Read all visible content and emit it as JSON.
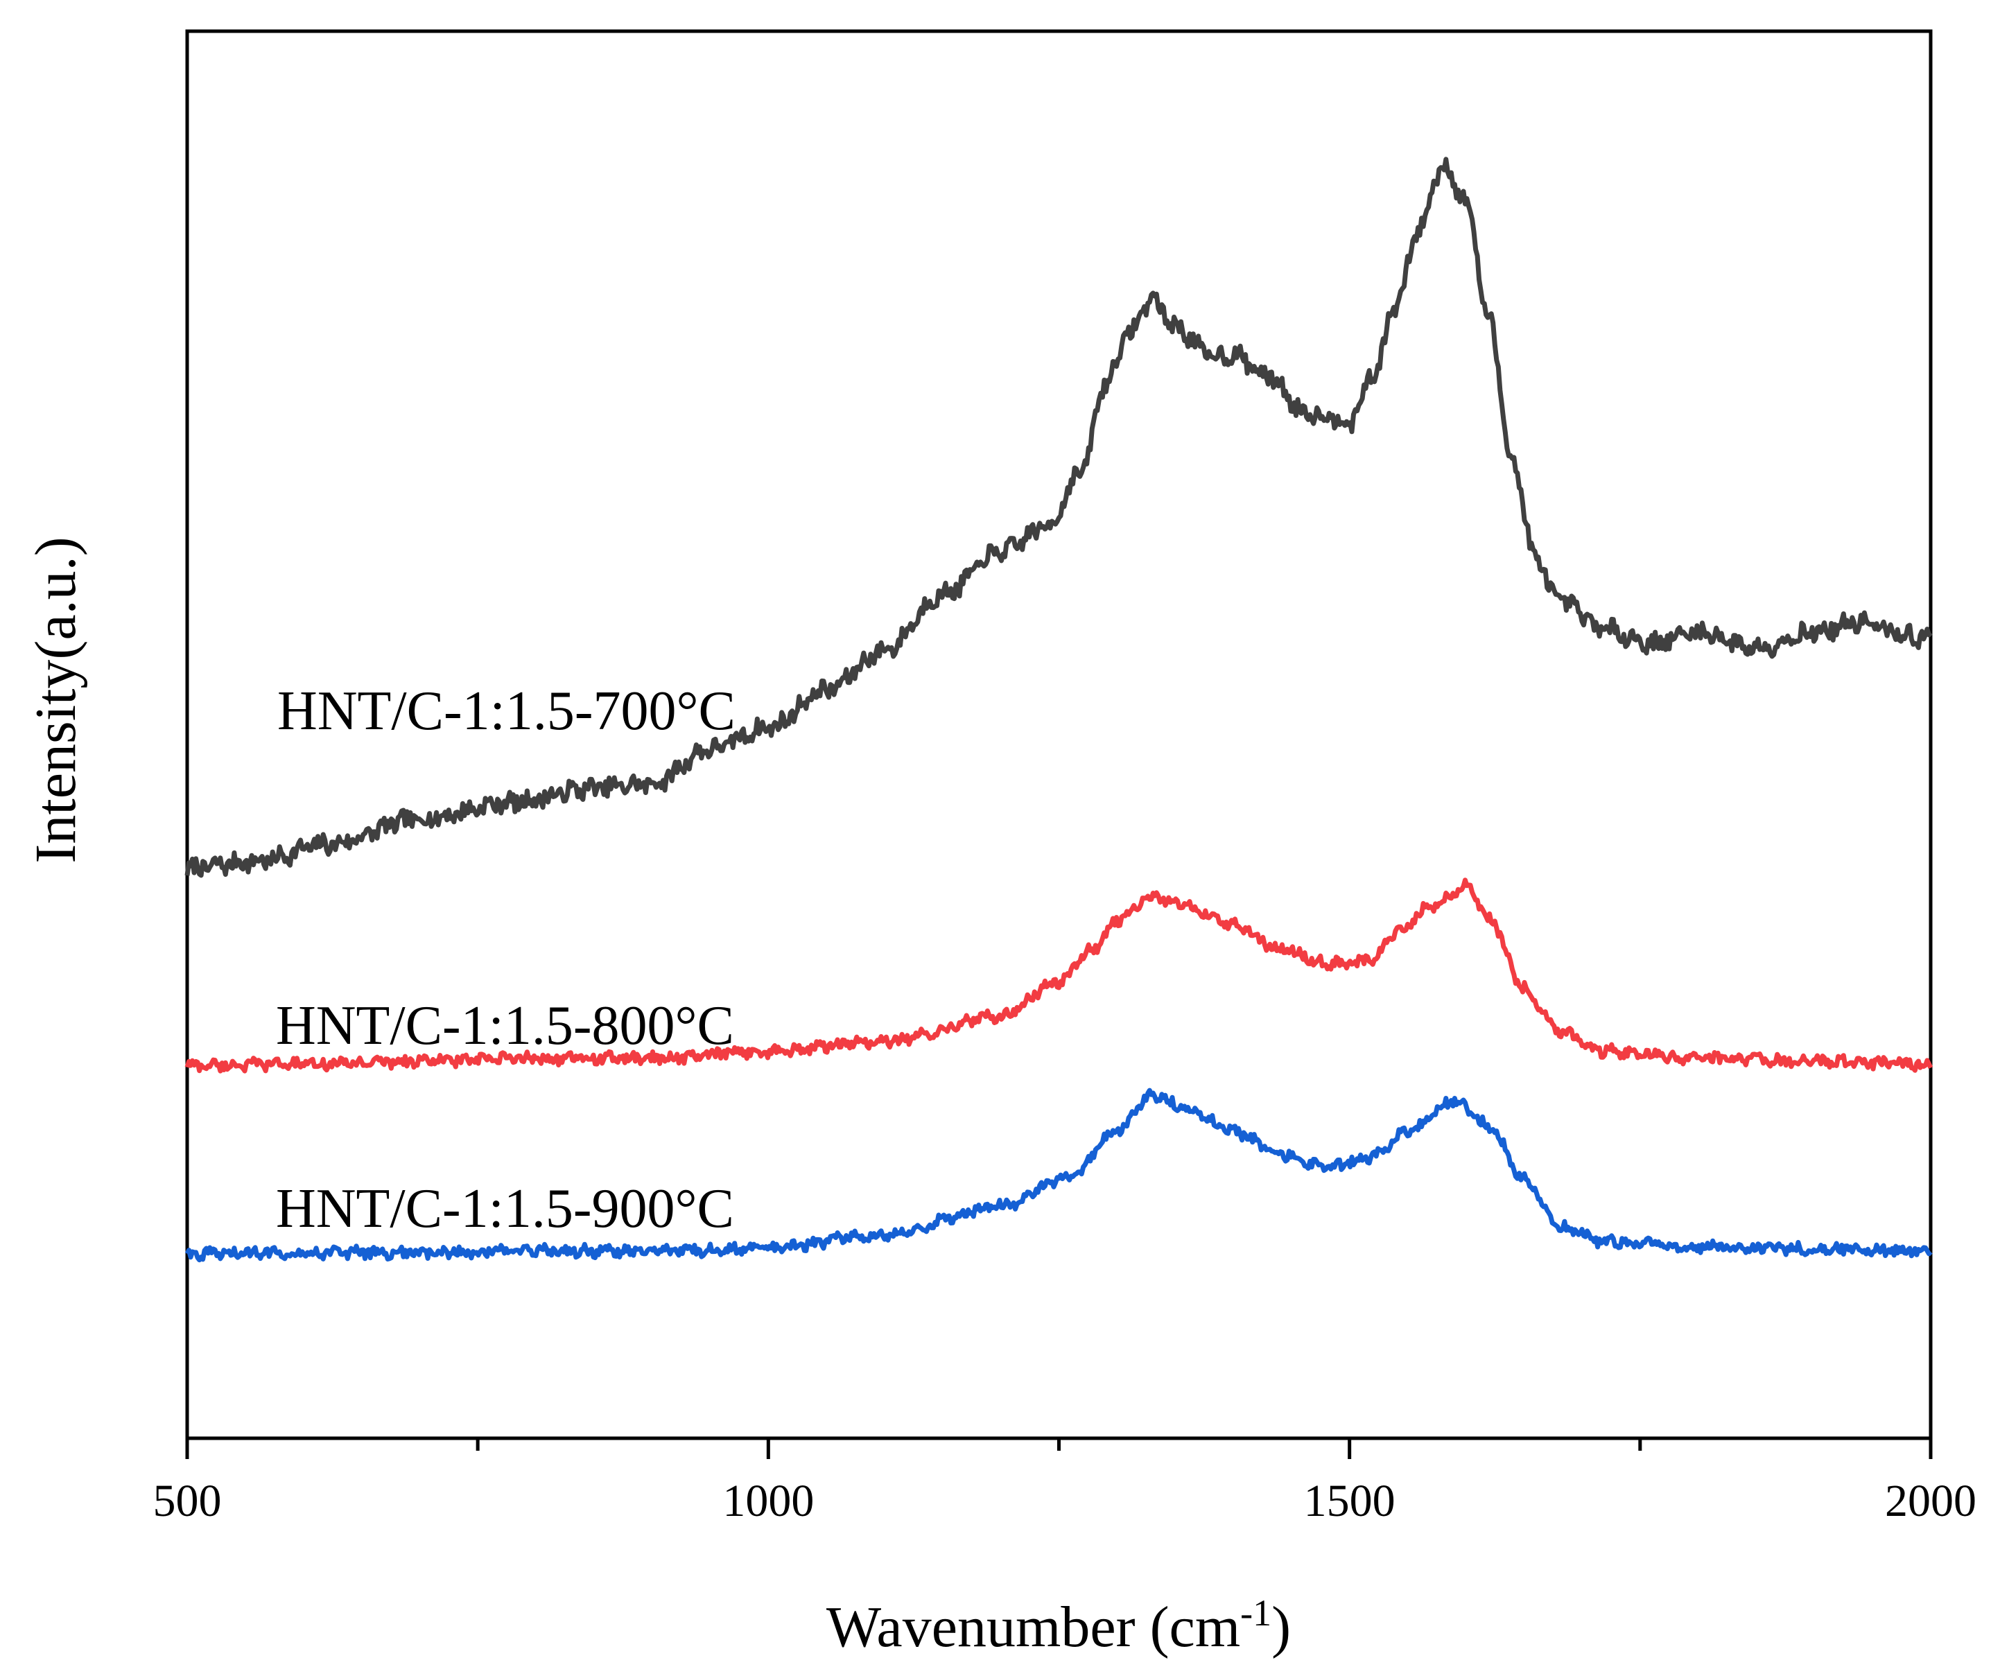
{
  "chart_data": {
    "type": "line",
    "title": "",
    "xlabel": "Wavenumber",
    "xlabel_unit": "(cm",
    "xlabel_unit_sup": "-1",
    "xlabel_unit_close": ")",
    "ylabel": "Intensity(a.u.)",
    "xlim": [
      500,
      2000
    ],
    "xticks": [
      500,
      1000,
      1500,
      2000
    ],
    "x_minor_ticks": [
      750,
      1250,
      1750
    ],
    "ylim": [
      0,
      1
    ],
    "yticks": [],
    "grid": false,
    "legend": "inline labels at left",
    "series": [
      {
        "name": "HNT/C-1:1.5-700°C",
        "color": "#404040",
        "points": [
          [
            500,
            0.405
          ],
          [
            560,
            0.41
          ],
          [
            620,
            0.422
          ],
          [
            700,
            0.44
          ],
          [
            780,
            0.452
          ],
          [
            850,
            0.462
          ],
          [
            900,
            0.465
          ],
          [
            950,
            0.49
          ],
          [
            1000,
            0.505
          ],
          [
            1050,
            0.532
          ],
          [
            1100,
            0.56
          ],
          [
            1150,
            0.6
          ],
          [
            1200,
            0.63
          ],
          [
            1240,
            0.648
          ],
          [
            1270,
            0.688
          ],
          [
            1290,
            0.75
          ],
          [
            1310,
            0.785
          ],
          [
            1330,
            0.81
          ],
          [
            1350,
            0.79
          ],
          [
            1380,
            0.77
          ],
          [
            1400,
            0.77
          ],
          [
            1430,
            0.755
          ],
          [
            1460,
            0.73
          ],
          [
            1490,
            0.725
          ],
          [
            1500,
            0.722
          ],
          [
            1520,
            0.755
          ],
          [
            1540,
            0.805
          ],
          [
            1560,
            0.86
          ],
          [
            1580,
            0.905
          ],
          [
            1600,
            0.88
          ],
          [
            1620,
            0.795
          ],
          [
            1640,
            0.695
          ],
          [
            1660,
            0.625
          ],
          [
            1680,
            0.595
          ],
          [
            1720,
            0.575
          ],
          [
            1760,
            0.565
          ],
          [
            1800,
            0.573
          ],
          [
            1850,
            0.562
          ],
          [
            1900,
            0.573
          ],
          [
            1940,
            0.58
          ],
          [
            1970,
            0.572
          ],
          [
            2000,
            0.568
          ]
        ]
      },
      {
        "name": "HNT/C-1:1.5-800°C",
        "color": "#f23c42",
        "points": [
          [
            500,
            0.265
          ],
          [
            600,
            0.266
          ],
          [
            700,
            0.268
          ],
          [
            800,
            0.27
          ],
          [
            900,
            0.27
          ],
          [
            1000,
            0.275
          ],
          [
            1100,
            0.282
          ],
          [
            1200,
            0.3
          ],
          [
            1250,
            0.325
          ],
          [
            1280,
            0.348
          ],
          [
            1300,
            0.368
          ],
          [
            1330,
            0.385
          ],
          [
            1360,
            0.378
          ],
          [
            1400,
            0.365
          ],
          [
            1440,
            0.348
          ],
          [
            1480,
            0.338
          ],
          [
            1500,
            0.338
          ],
          [
            1520,
            0.34
          ],
          [
            1540,
            0.36
          ],
          [
            1570,
            0.378
          ],
          [
            1600,
            0.392
          ],
          [
            1620,
            0.37
          ],
          [
            1650,
            0.32
          ],
          [
            1680,
            0.29
          ],
          [
            1720,
            0.275
          ],
          [
            1800,
            0.27
          ],
          [
            1900,
            0.268
          ],
          [
            2000,
            0.266
          ]
        ]
      },
      {
        "name": "HNT/C-1:1.5-900°C",
        "color": "#1560d4",
        "points": [
          [
            500,
            0.131
          ],
          [
            600,
            0.132
          ],
          [
            700,
            0.132
          ],
          [
            800,
            0.133
          ],
          [
            900,
            0.133
          ],
          [
            1000,
            0.135
          ],
          [
            1100,
            0.145
          ],
          [
            1200,
            0.165
          ],
          [
            1260,
            0.185
          ],
          [
            1300,
            0.218
          ],
          [
            1330,
            0.244
          ],
          [
            1360,
            0.234
          ],
          [
            1400,
            0.218
          ],
          [
            1440,
            0.202
          ],
          [
            1480,
            0.192
          ],
          [
            1520,
            0.2
          ],
          [
            1550,
            0.218
          ],
          [
            1590,
            0.24
          ],
          [
            1620,
            0.222
          ],
          [
            1650,
            0.185
          ],
          [
            1680,
            0.15
          ],
          [
            1720,
            0.14
          ],
          [
            1800,
            0.136
          ],
          [
            1900,
            0.135
          ],
          [
            2000,
            0.133
          ]
        ]
      }
    ]
  }
}
